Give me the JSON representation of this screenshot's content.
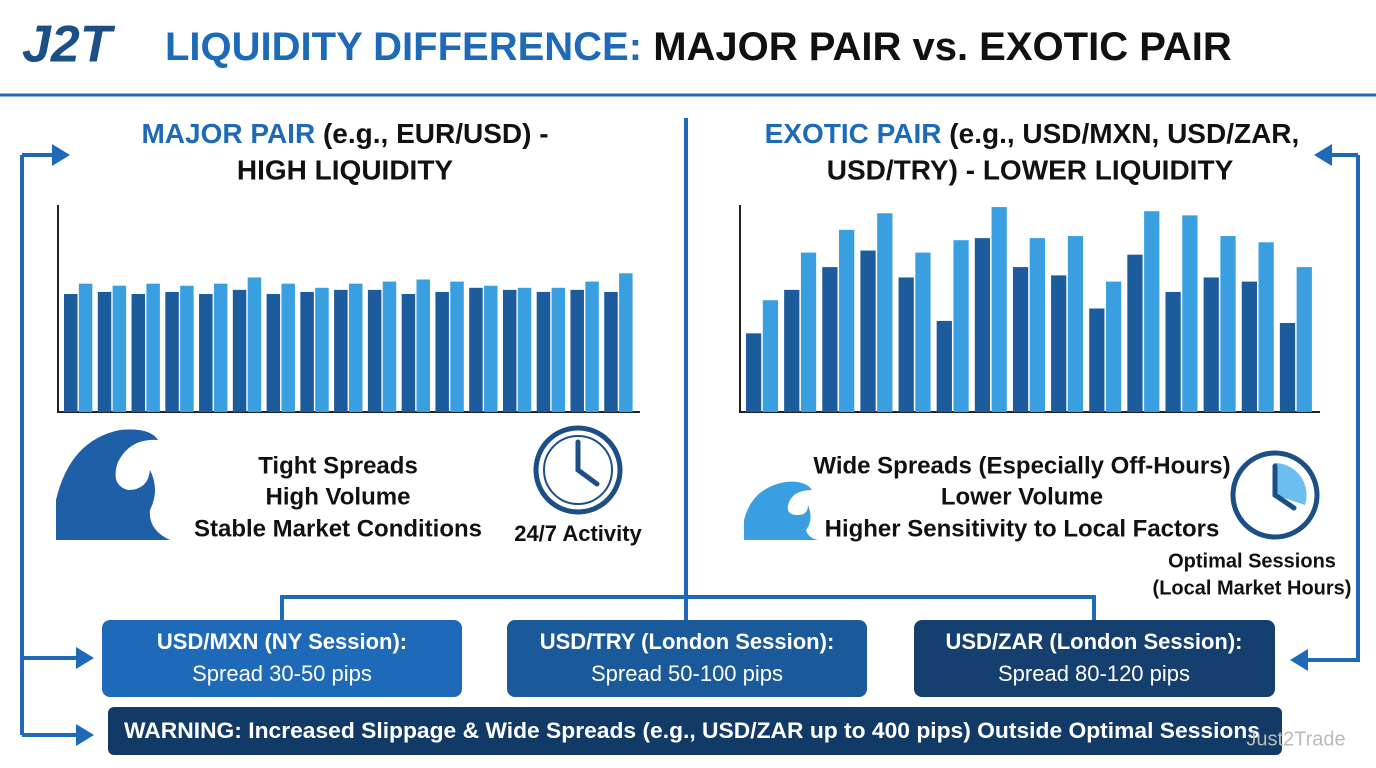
{
  "header": {
    "logo": "J2T",
    "title_highlight": "LIQUIDITY DIFFERENCE:",
    "title_rest": "MAJOR PAIR vs. EXOTIC PAIR"
  },
  "major": {
    "heading_highlight": "MAJOR PAIR",
    "heading_rest": "(e.g., EUR/USD) -",
    "heading_line2": "HIGH LIQUIDITY",
    "chart": {
      "type": "bar",
      "ylim": [
        0,
        100
      ],
      "colors": [
        "#1d5c9c",
        "#3a9fe0"
      ],
      "series": [
        {
          "values": [
            57,
            58,
            57,
            58,
            57,
            59,
            57,
            58,
            59,
            59,
            57,
            58,
            60,
            59,
            58,
            59,
            58
          ]
        },
        {
          "values": [
            62,
            61,
            62,
            61,
            62,
            65,
            62,
            60,
            62,
            63,
            64,
            63,
            61,
            60,
            60,
            63,
            67
          ]
        }
      ]
    },
    "features": [
      "Tight Spreads",
      "High Volume",
      "Stable Market Conditions"
    ],
    "clock_label": "24/7 Activity"
  },
  "exotic": {
    "heading_highlight": "EXOTIC PAIR",
    "heading_rest": "(e.g., USD/MXN, USD/ZAR,",
    "heading_line2": "USD/TRY) - LOWER LIQUIDITY",
    "chart": {
      "type": "bar",
      "ylim": [
        0,
        100
      ],
      "colors": [
        "#1d5c9c",
        "#3a9fe0"
      ],
      "series": [
        {
          "values": [
            38,
            59,
            70,
            78,
            65,
            44,
            84,
            70,
            66,
            50,
            76,
            58,
            65,
            63,
            43
          ]
        },
        {
          "values": [
            54,
            77,
            88,
            96,
            77,
            83,
            99,
            84,
            85,
            63,
            97,
            95,
            85,
            82,
            70
          ]
        }
      ]
    },
    "features": [
      "Wide Spreads (Especially Off-Hours)",
      "Lower Volume",
      "Higher Sensitivity to Local Factors"
    ],
    "clock_label": [
      "Optimal Sessions",
      "(Local Market Hours)"
    ]
  },
  "sessions": [
    {
      "title": "USD/MXN (NY Session):",
      "detail": "Spread 30-50 pips"
    },
    {
      "title": "USD/TRY (London Session):",
      "detail": "Spread 50-100 pips"
    },
    {
      "title": "USD/ZAR (London Session):",
      "detail": "Spread 80-120 pips"
    }
  ],
  "warning": "WARNING: Increased Slippage & Wide Spreads (e.g., USD/ZAR up to 400 pips) Outside Optimal Sessions",
  "watermark": "Just2Trade"
}
